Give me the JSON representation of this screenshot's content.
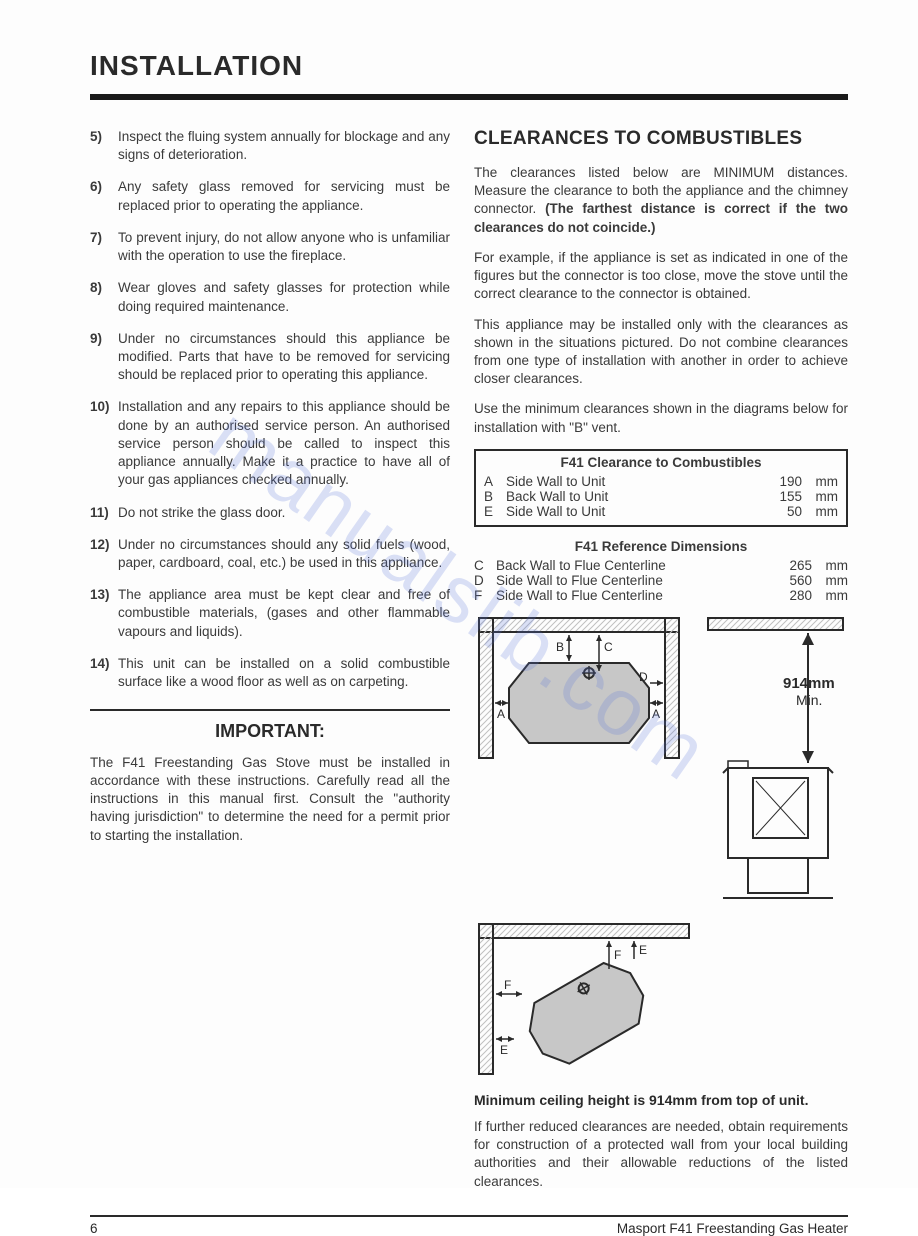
{
  "heading": "INSTALLATION",
  "watermark": "manualslib.com",
  "left_list": [
    {
      "n": "5)",
      "t": "Inspect the fluing system annually for blockage and any signs of deterioration."
    },
    {
      "n": "6)",
      "t": "Any safety glass removed for servicing must be replaced prior to operating the appliance."
    },
    {
      "n": "7)",
      "t": "To prevent injury, do not allow anyone who is unfamiliar with the operation to use the fireplace."
    },
    {
      "n": "8)",
      "t": "Wear gloves and safety glasses for protection while doing required maintenance."
    },
    {
      "n": "9)",
      "t": "Under no circumstances should this appliance be modified. Parts that have to be removed for servicing should be replaced prior to operating this appliance."
    },
    {
      "n": "10)",
      "t": "Installation and any repairs to this appliance should be done by an authorised service person. An authorised service person should be called to inspect this appliance annually. Make it a practice to have all of your gas appliances checked annually."
    },
    {
      "n": "11)",
      "t": "Do not strike the glass door."
    },
    {
      "n": "12)",
      "t": "Under no circumstances should any solid fuels (wood, paper, cardboard, coal, etc.) be used in this appliance."
    },
    {
      "n": "13)",
      "t": "The appliance area must be kept clear and free of combustible materials, (gases and other flammable vapours and liquids)."
    },
    {
      "n": "14)",
      "t": "This unit can be installed on a solid combustible surface like a wood floor as well as on carpeting."
    }
  ],
  "important_heading": "IMPORTANT:",
  "important_para": "The F41 Freestanding Gas Stove must be installed in accordance with these instructions. Carefully read all the instructions in this manual first. Consult the \"authority having jurisdiction\" to determine the need for a permit prior to starting the installation.",
  "clearances_heading": "CLEARANCES TO COMBUSTIBLES",
  "para_r1": "The clearances listed below are MINIMUM distances. Measure the clearance to both the appliance and the chimney connector. ",
  "para_r1_bold": "(The farthest distance is correct if the two clearances do not coincide.)",
  "para_r2": "For example, if the appliance is set as indicated in one of the figures but the connector is too close, move the stove until the correct clearance to the connector is obtained.",
  "para_r3": "This appliance may be installed only with the clearances as shown in the situations pictured. Do not combine clearances from one type of installation with another in order to achieve closer clearances.",
  "para_r4": "Use the minimum clearances shown in the diagrams below for installation with \"B\" vent.",
  "clearance_table": {
    "title": "F41 Clearance to Combustibles",
    "rows": [
      {
        "code": "A",
        "label": "Side Wall to Unit",
        "val": "190",
        "unit": "mm"
      },
      {
        "code": "B",
        "label": "Back Wall to Unit",
        "val": "155",
        "unit": "mm"
      },
      {
        "code": "E",
        "label": "Side Wall to Unit",
        "val": "50",
        "unit": "mm"
      }
    ]
  },
  "ref_title": "F41 Reference Dimensions",
  "ref_rows": [
    {
      "code": "C",
      "label": "Back Wall to Flue Centerline",
      "val": "265",
      "unit": "mm"
    },
    {
      "code": "D",
      "label": "Side Wall to Flue Centerline",
      "val": "560",
      "unit": "mm"
    },
    {
      "code": "F",
      "label": "Side Wall to Flue Centerline",
      "val": "280",
      "unit": "mm"
    }
  ],
  "min_ceiling_label": "914mm",
  "min_ceiling_sub": "Min.",
  "caption": "Minimum ceiling height is 914mm from top of unit.",
  "para_r5": "If further reduced clearances are needed, obtain requirements for construction of a protected wall from your local building authorities and their allowable reductions of the listed clearances.",
  "footer_page": "6",
  "footer_title": "Masport F41 Freestanding Gas Heater",
  "diagram": {
    "stroke": "#2a2a2a",
    "fill": "#c7c7c7",
    "hatch": "#bfbfbf",
    "label_font": 12
  }
}
